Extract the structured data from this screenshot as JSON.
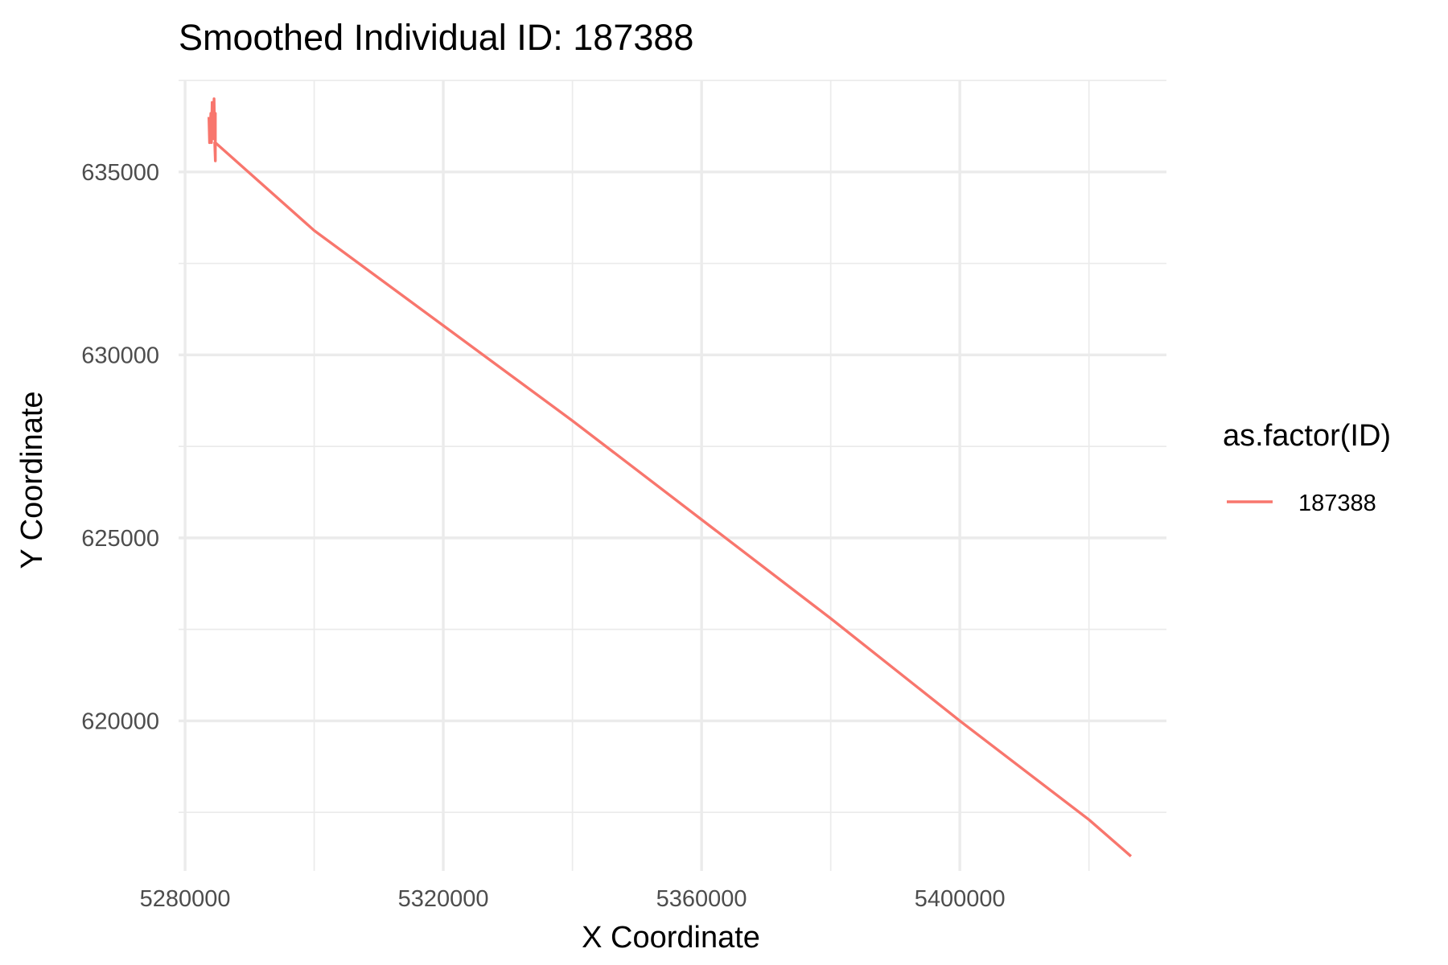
{
  "chart_data": {
    "type": "line",
    "title": "Smoothed Individual ID: 187388",
    "xlabel": "X Coordinate",
    "ylabel": "Y Coordinate",
    "xlim": [
      5279000,
      5432000
    ],
    "ylim": [
      615900,
      637500
    ],
    "x_ticks": [
      5280000,
      5320000,
      5360000,
      5400000
    ],
    "x_tick_labels": [
      "5280000",
      "5320000",
      "5360000",
      "5400000"
    ],
    "y_ticks": [
      620000,
      625000,
      630000,
      635000
    ],
    "y_tick_labels": [
      "620000",
      "625000",
      "630000",
      "635000"
    ],
    "grid": true,
    "legend": {
      "title": "as.factor(ID)",
      "position": "right"
    },
    "series": [
      {
        "name": "187388",
        "color": "#F8766D",
        "points": [
          [
            5283700,
            636500
          ],
          [
            5283800,
            635800
          ],
          [
            5284000,
            636600
          ],
          [
            5284100,
            635800
          ],
          [
            5284200,
            636900
          ],
          [
            5284300,
            636100
          ],
          [
            5284400,
            636800
          ],
          [
            5284500,
            635900
          ],
          [
            5284500,
            637000
          ],
          [
            5284600,
            635900
          ],
          [
            5284700,
            636600
          ],
          [
            5284700,
            635300
          ],
          [
            5284600,
            635800
          ],
          [
            5284700,
            635800
          ],
          [
            5300000,
            633400
          ],
          [
            5320000,
            630800
          ],
          [
            5340000,
            628200
          ],
          [
            5360000,
            625500
          ],
          [
            5380000,
            622800
          ],
          [
            5400000,
            620000
          ],
          [
            5420000,
            617300
          ],
          [
            5426500,
            616300
          ]
        ]
      }
    ]
  }
}
